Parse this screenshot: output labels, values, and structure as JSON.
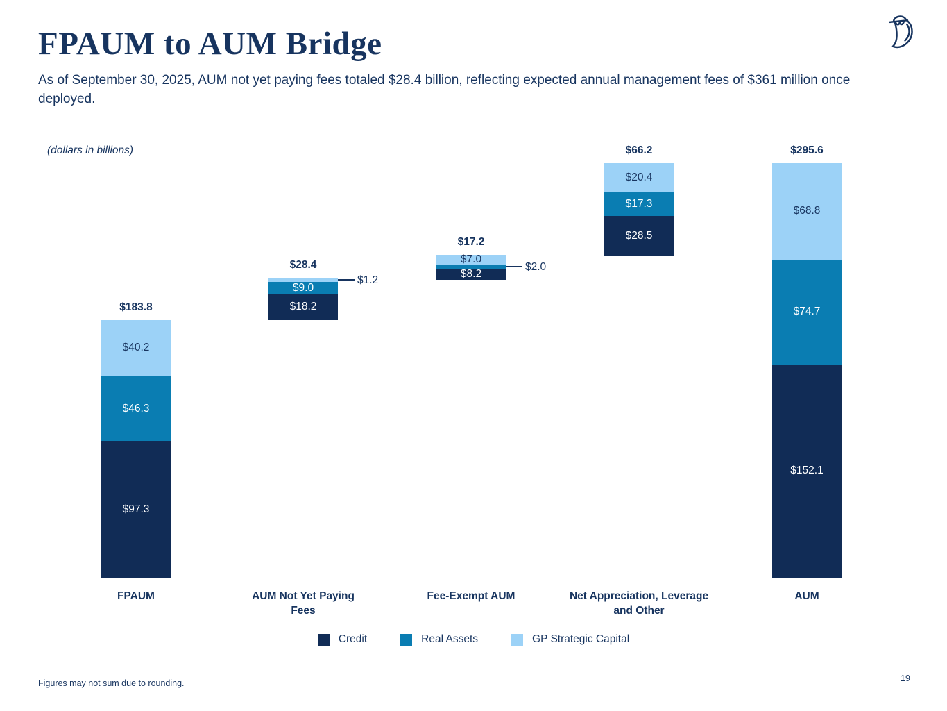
{
  "slide": {
    "title": "FPAUM to AUM Bridge",
    "subtitle": "As of September 30, 2025, AUM not yet paying fees totaled $28.4 billion, reflecting expected annual management fees of $361 million once deployed.",
    "footnote": "Figures may not sum due to rounding.",
    "page_number": "19",
    "logo_name": "owl-logo"
  },
  "colors": {
    "navy_text": "#17345F",
    "credit": "#112C56",
    "real_assets": "#0A7DB2",
    "gp_strategic_capital": "#9CD2F7",
    "axis_line": "#8a8a8a"
  },
  "chart_data": {
    "type": "bar",
    "subtype": "stacked-waterfall-bridge",
    "note": "(dollars in billions)",
    "ylim": [
      0,
      300
    ],
    "gridlines": false,
    "legend_position": "bottom",
    "legend": [
      {
        "name": "Credit",
        "color": "#112C56"
      },
      {
        "name": "Real Assets",
        "color": "#0A7DB2"
      },
      {
        "name": "GP Strategic Capital",
        "color": "#9CD2F7"
      }
    ],
    "bars": [
      {
        "category_lines": [
          "FPAUM"
        ],
        "total": 183.8,
        "total_label": "$183.8",
        "base": 0,
        "segments": [
          {
            "series": "Credit",
            "value": 97.3,
            "label": "$97.3"
          },
          {
            "series": "Real Assets",
            "value": 46.3,
            "label": "$46.3"
          },
          {
            "series": "GP Strategic Capital",
            "value": 40.2,
            "label": "$40.2"
          }
        ]
      },
      {
        "category_lines": [
          "AUM Not Yet Paying",
          "Fees"
        ],
        "total": 28.4,
        "total_label": "$28.4",
        "base": 183.8,
        "segments": [
          {
            "series": "Credit",
            "value": 18.2,
            "label": "$18.2"
          },
          {
            "series": "Real Assets",
            "value": 9.0,
            "label": "$9.0"
          },
          {
            "series": "GP Strategic Capital",
            "value": 1.2,
            "label": "$1.2",
            "callout": true
          }
        ]
      },
      {
        "category_lines": [
          "Fee-Exempt AUM"
        ],
        "total": 17.2,
        "total_label": "$17.2",
        "base": 212.2,
        "segments": [
          {
            "series": "Credit",
            "value": 8.2,
            "label": "$8.2"
          },
          {
            "series": "Real Assets",
            "value": 2.0,
            "label": "$2.0",
            "callout": true
          },
          {
            "series": "GP Strategic Capital",
            "value": 7.0,
            "label": "$7.0"
          }
        ]
      },
      {
        "category_lines": [
          "Net Appreciation, Leverage",
          "and Other"
        ],
        "total": 66.2,
        "total_label": "$66.2",
        "base": 229.4,
        "segments": [
          {
            "series": "Credit",
            "value": 28.5,
            "label": "$28.5"
          },
          {
            "series": "Real Assets",
            "value": 17.3,
            "label": "$17.3"
          },
          {
            "series": "GP Strategic Capital",
            "value": 20.4,
            "label": "$20.4"
          }
        ]
      },
      {
        "category_lines": [
          "AUM"
        ],
        "total": 295.6,
        "total_label": "$295.6",
        "base": 0,
        "segments": [
          {
            "series": "Credit",
            "value": 152.1,
            "label": "$152.1"
          },
          {
            "series": "Real Assets",
            "value": 74.7,
            "label": "$74.7"
          },
          {
            "series": "GP Strategic Capital",
            "value": 68.8,
            "label": "$68.8"
          }
        ]
      }
    ]
  }
}
